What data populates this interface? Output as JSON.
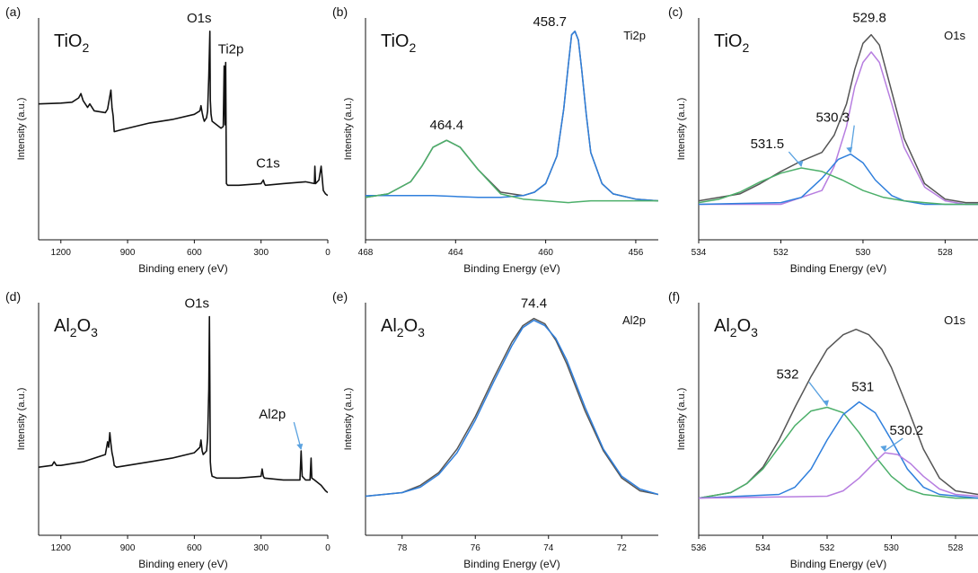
{
  "figure": {
    "colors": {
      "survey": "#111111",
      "envelope": "#555555",
      "fit_blue": "#2f7fdc",
      "fit_green": "#4caf6a",
      "fit_purple": "#b77ee0",
      "baseline_green": "#4caf6a",
      "arrow": "#5aa2e0",
      "axis": "#111111"
    }
  },
  "chart_data": [
    {
      "id": "a",
      "panel_label": "(a)",
      "type": "line",
      "compound": "TiO",
      "compound_sub": "2",
      "compound_tail": "",
      "core_level": "",
      "xlabel": "Binding enery (eV)",
      "ylabel": "Intensity (a.u.)",
      "xlim": [
        1300,
        0
      ],
      "ylim": [
        0,
        1
      ],
      "xticks": [
        1200,
        900,
        600,
        300,
        0
      ],
      "yticks_shown": false,
      "series": [
        {
          "color": "#111111",
          "kind": "survey",
          "x": [
            1300,
            1200,
            1150,
            1120,
            1110,
            1100,
            1080,
            1070,
            1050,
            1000,
            990,
            975,
            970,
            965,
            960,
            930,
            800,
            700,
            600,
            575,
            570,
            565,
            560,
            555,
            545,
            540,
            535,
            530,
            528,
            525,
            520,
            480,
            470,
            466,
            462,
            459,
            456,
            450,
            400,
            300,
            290,
            285,
            280,
            200,
            100,
            60,
            58,
            55,
            40,
            30,
            20,
            10,
            0
          ],
          "y": [
            0.58,
            0.585,
            0.59,
            0.615,
            0.64,
            0.6,
            0.56,
            0.58,
            0.54,
            0.53,
            0.55,
            0.66,
            0.56,
            0.51,
            0.42,
            0.43,
            0.47,
            0.49,
            0.52,
            0.54,
            0.57,
            0.53,
            0.5,
            0.48,
            0.5,
            0.54,
            0.74,
            1.0,
            0.6,
            0.52,
            0.48,
            0.44,
            0.45,
            0.8,
            0.46,
            0.82,
            0.12,
            0.11,
            0.11,
            0.12,
            0.14,
            0.12,
            0.11,
            0.12,
            0.13,
            0.12,
            0.22,
            0.12,
            0.14,
            0.22,
            0.08,
            0.06,
            0.05
          ]
        }
      ],
      "annotations": [
        {
          "text": "O1s",
          "x": 530,
          "y": 1.0
        },
        {
          "text": "Ti2p",
          "x": 460,
          "y": 0.83
        },
        {
          "text": "C1s",
          "x": 285,
          "y": 0.14
        }
      ]
    },
    {
      "id": "b",
      "panel_label": "(b)",
      "type": "line",
      "compound": "TiO",
      "compound_sub": "2",
      "compound_tail": "",
      "core_level": "Ti2p",
      "xlabel": "Binding Energy (eV)",
      "ylabel": "Intensity (a.u.)",
      "xlim": [
        468,
        455
      ],
      "ylim": [
        0,
        1
      ],
      "xticks": [
        468,
        464,
        460,
        456
      ],
      "yticks_shown": false,
      "series": [
        {
          "color": "#555555",
          "kind": "envelope",
          "x": [
            468,
            467,
            466,
            465.5,
            465,
            464.4,
            463.8,
            463,
            462,
            461,
            460.5,
            460,
            459.5,
            459.2,
            459,
            458.85,
            458.7,
            458.55,
            458.4,
            458.2,
            458,
            457.5,
            457,
            456,
            455
          ],
          "y": [
            0.04,
            0.06,
            0.13,
            0.22,
            0.33,
            0.37,
            0.33,
            0.2,
            0.07,
            0.05,
            0.07,
            0.12,
            0.28,
            0.55,
            0.8,
            0.98,
            1.0,
            0.95,
            0.78,
            0.52,
            0.3,
            0.12,
            0.06,
            0.03,
            0.02
          ]
        },
        {
          "color": "#2f7fdc",
          "kind": "fit",
          "x": [
            468,
            467,
            466,
            465,
            464,
            463,
            462,
            461,
            460.5,
            460,
            459.5,
            459.2,
            459,
            458.85,
            458.7,
            458.55,
            458.4,
            458.2,
            458,
            457.5,
            457,
            456,
            455
          ],
          "y": [
            0.05,
            0.05,
            0.05,
            0.05,
            0.045,
            0.04,
            0.04,
            0.05,
            0.07,
            0.12,
            0.28,
            0.55,
            0.8,
            0.98,
            1.0,
            0.95,
            0.78,
            0.52,
            0.3,
            0.12,
            0.06,
            0.03,
            0.02
          ]
        },
        {
          "color": "#4caf6a",
          "kind": "fit",
          "x": [
            468,
            467,
            466,
            465.5,
            465,
            464.4,
            463.8,
            463,
            462,
            461,
            460,
            459,
            458,
            457,
            456,
            455
          ],
          "y": [
            0.04,
            0.06,
            0.13,
            0.22,
            0.33,
            0.37,
            0.33,
            0.2,
            0.06,
            0.03,
            0.02,
            0.01,
            0.02,
            0.02,
            0.02,
            0.02
          ]
        }
      ],
      "annotations": [
        {
          "text": "464.4",
          "x": 464.4,
          "y": 0.37
        },
        {
          "text": "458.7",
          "x": 458.7,
          "y": 1.0
        }
      ]
    },
    {
      "id": "c",
      "panel_label": "(c)",
      "type": "line",
      "compound": "TiO",
      "compound_sub": "2",
      "compound_tail": "",
      "core_level": "O1s",
      "xlabel": "Binding Energy (eV)",
      "ylabel": "Intensity (a.u.)",
      "xlim": [
        534,
        527.2
      ],
      "ylim": [
        0,
        1
      ],
      "xticks": [
        534,
        532,
        530,
        528
      ],
      "yticks_shown": false,
      "series": [
        {
          "color": "#555555",
          "kind": "envelope",
          "x": [
            534,
            533,
            532.5,
            532,
            531.5,
            531,
            530.7,
            530.4,
            530.2,
            530,
            529.8,
            529.6,
            529.3,
            529,
            528.5,
            528,
            527.5,
            527.2
          ],
          "y": [
            0.02,
            0.06,
            0.12,
            0.19,
            0.25,
            0.3,
            0.4,
            0.58,
            0.78,
            0.93,
            0.98,
            0.92,
            0.65,
            0.38,
            0.12,
            0.03,
            0.01,
            0.01
          ]
        },
        {
          "color": "#b77ee0",
          "kind": "fit",
          "x": [
            534,
            532,
            531,
            530.7,
            530.4,
            530.2,
            530,
            529.8,
            529.6,
            529.3,
            529,
            528.5,
            528,
            527.5,
            527.2
          ],
          "y": [
            0.0,
            0.0,
            0.08,
            0.22,
            0.45,
            0.68,
            0.82,
            0.88,
            0.82,
            0.58,
            0.33,
            0.1,
            0.02,
            0.0,
            0.0
          ]
        },
        {
          "color": "#2f7fdc",
          "kind": "fit",
          "x": [
            534,
            532,
            531.5,
            531,
            530.6,
            530.3,
            530,
            529.7,
            529.3,
            529,
            528.5,
            527.2
          ],
          "y": [
            0.0,
            0.01,
            0.04,
            0.15,
            0.26,
            0.29,
            0.24,
            0.14,
            0.05,
            0.02,
            0.0,
            0.0
          ]
        },
        {
          "color": "#4caf6a",
          "kind": "fit",
          "x": [
            534,
            533.5,
            533,
            532.5,
            532,
            531.5,
            531,
            530.5,
            530,
            529.5,
            529,
            528.5,
            528,
            527.2
          ],
          "y": [
            0.01,
            0.03,
            0.07,
            0.13,
            0.18,
            0.21,
            0.19,
            0.14,
            0.08,
            0.04,
            0.02,
            0.01,
            0.0,
            0.0
          ]
        }
      ],
      "annotations": [
        {
          "text": "529.8",
          "x": 529.8,
          "y": 0.98
        },
        {
          "text": "530.3",
          "x": 530.3,
          "y": 0.29,
          "arrow": true
        },
        {
          "text": "531.5",
          "x": 531.5,
          "y": 0.21,
          "arrow": true
        }
      ]
    },
    {
      "id": "d",
      "panel_label": "(d)",
      "type": "line",
      "compound": "Al",
      "compound_sub": "2",
      "compound_tail": "O",
      "compound_sub2": "3",
      "core_level": "",
      "xlabel": "Binding enery (eV)",
      "ylabel": "Intensity (a.u.)",
      "xlim": [
        1300,
        0
      ],
      "ylim": [
        0,
        1
      ],
      "xticks": [
        1200,
        900,
        600,
        300,
        0
      ],
      "yticks_shown": false,
      "series": [
        {
          "color": "#111111",
          "kind": "survey",
          "x": [
            1300,
            1240,
            1230,
            1220,
            1200,
            1100,
            1000,
            990,
            985,
            980,
            975,
            970,
            965,
            960,
            950,
            800,
            700,
            600,
            575,
            570,
            565,
            560,
            545,
            540,
            535,
            532,
            530,
            528,
            525,
            520,
            500,
            400,
            300,
            295,
            290,
            285,
            200,
            150,
            125,
            120,
            115,
            100,
            80,
            75,
            72,
            60,
            30,
            10,
            0
          ],
          "y": [
            0.17,
            0.18,
            0.2,
            0.18,
            0.18,
            0.2,
            0.24,
            0.31,
            0.28,
            0.36,
            0.3,
            0.25,
            0.22,
            0.18,
            0.17,
            0.2,
            0.22,
            0.25,
            0.28,
            0.32,
            0.26,
            0.24,
            0.26,
            0.33,
            0.6,
            1.0,
            0.62,
            0.2,
            0.15,
            0.12,
            0.11,
            0.11,
            0.12,
            0.16,
            0.12,
            0.11,
            0.1,
            0.1,
            0.1,
            0.26,
            0.12,
            0.1,
            0.1,
            0.22,
            0.11,
            0.1,
            0.07,
            0.04,
            0.03
          ]
        }
      ],
      "annotations": [
        {
          "text": "O1s",
          "x": 532,
          "y": 1.0
        },
        {
          "text": "Al2p",
          "x": 120,
          "y": 0.26,
          "arrow": true
        }
      ]
    },
    {
      "id": "e",
      "panel_label": "(e)",
      "type": "line",
      "compound": "Al",
      "compound_sub": "2",
      "compound_tail": "O",
      "compound_sub2": "3",
      "core_level": "Al2p",
      "xlabel": "Binding Energy (eV)",
      "ylabel": "Intensity (a.u.)",
      "xlim": [
        79,
        71
      ],
      "ylim": [
        0,
        1
      ],
      "xticks": [
        78,
        76,
        74,
        72
      ],
      "yticks_shown": false,
      "series": [
        {
          "color": "#555555",
          "kind": "envelope",
          "x": [
            79,
            78,
            77.5,
            77,
            76.5,
            76,
            75.5,
            75,
            74.7,
            74.4,
            74.1,
            73.8,
            73.5,
            73,
            72.5,
            72,
            71.5,
            71
          ],
          "y": [
            0.01,
            0.03,
            0.07,
            0.14,
            0.27,
            0.45,
            0.66,
            0.86,
            0.95,
            0.99,
            0.96,
            0.87,
            0.74,
            0.48,
            0.26,
            0.11,
            0.04,
            0.02
          ]
        },
        {
          "color": "#2f7fdc",
          "kind": "fit",
          "x": [
            79,
            78,
            77.5,
            77,
            76.5,
            76,
            75.5,
            75,
            74.7,
            74.4,
            74.1,
            73.8,
            73.5,
            73,
            72.5,
            72,
            71.5,
            71
          ],
          "y": [
            0.01,
            0.03,
            0.06,
            0.13,
            0.25,
            0.43,
            0.64,
            0.84,
            0.94,
            0.98,
            0.95,
            0.88,
            0.76,
            0.5,
            0.27,
            0.12,
            0.05,
            0.02
          ]
        }
      ],
      "annotations": [
        {
          "text": "74.4",
          "x": 74.4,
          "y": 0.99
        }
      ]
    },
    {
      "id": "f",
      "panel_label": "(f)",
      "type": "line",
      "compound": "Al",
      "compound_sub": "2",
      "compound_tail": "O",
      "compound_sub2": "3",
      "core_level": "O1s",
      "xlabel": "Binding Energy (eV)",
      "ylabel": "Intensity (a.u.)",
      "xlim": [
        536,
        527.3
      ],
      "ylim": [
        0,
        1
      ],
      "xticks": [
        536,
        534,
        532,
        530,
        528
      ],
      "yticks_shown": false,
      "series": [
        {
          "color": "#555555",
          "kind": "envelope",
          "x": [
            536,
            535,
            534.5,
            534,
            533.5,
            533,
            532.5,
            532,
            531.5,
            531.1,
            530.7,
            530.3,
            530,
            529.5,
            529,
            528.5,
            528,
            527.3
          ],
          "y": [
            0.0,
            0.03,
            0.08,
            0.17,
            0.32,
            0.5,
            0.67,
            0.82,
            0.9,
            0.93,
            0.9,
            0.82,
            0.72,
            0.5,
            0.27,
            0.11,
            0.04,
            0.02
          ]
        },
        {
          "color": "#4caf6a",
          "kind": "fit",
          "x": [
            536,
            535,
            534.5,
            534,
            533.5,
            533,
            532.5,
            532,
            531.5,
            531,
            530.5,
            530,
            529.5,
            529,
            528,
            527.3
          ],
          "y": [
            0.0,
            0.03,
            0.08,
            0.16,
            0.28,
            0.4,
            0.48,
            0.5,
            0.47,
            0.36,
            0.23,
            0.12,
            0.05,
            0.02,
            0.0,
            0.0
          ]
        },
        {
          "color": "#2f7fdc",
          "kind": "fit",
          "x": [
            536,
            533.5,
            533,
            532.5,
            532,
            531.5,
            531,
            530.5,
            530,
            529.5,
            529,
            528.5,
            527.3
          ],
          "y": [
            0.0,
            0.02,
            0.06,
            0.16,
            0.32,
            0.46,
            0.53,
            0.47,
            0.32,
            0.16,
            0.06,
            0.02,
            0.0
          ],
          "peak": 531
        },
        {
          "color": "#b77ee0",
          "kind": "fit",
          "x": [
            536,
            532,
            531.5,
            531,
            530.5,
            530.2,
            529.8,
            529.4,
            529,
            528.5,
            528,
            527.3
          ],
          "y": [
            0.0,
            0.01,
            0.04,
            0.11,
            0.2,
            0.25,
            0.24,
            0.19,
            0.12,
            0.05,
            0.02,
            0.01
          ]
        }
      ],
      "annotations": [
        {
          "text": "532",
          "x": 532,
          "y": 0.5,
          "arrow": true
        },
        {
          "text": "531",
          "x": 531,
          "y": 0.53
        },
        {
          "text": "530.2",
          "x": 530.2,
          "y": 0.25,
          "arrow": true
        }
      ]
    }
  ]
}
